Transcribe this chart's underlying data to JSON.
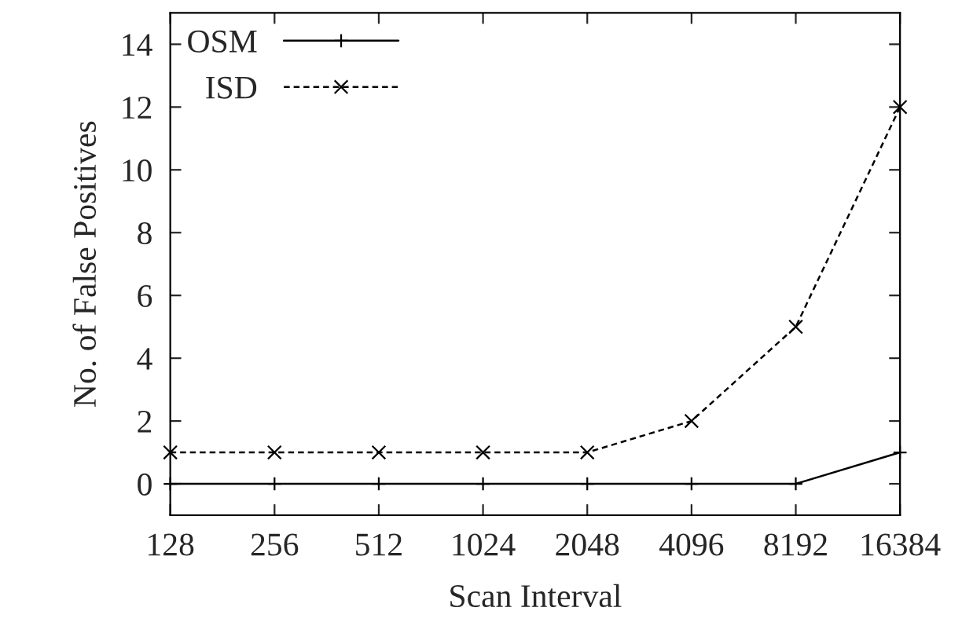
{
  "chart_data": {
    "type": "line",
    "xlabel": "Scan Interval",
    "ylabel": "No. of False Positives",
    "categories": [
      "128",
      "256",
      "512",
      "1024",
      "2048",
      "4096",
      "8192",
      "16384"
    ],
    "series": [
      {
        "name": "OSM",
        "color": "#000000",
        "values": [
          0,
          0,
          0,
          0,
          0,
          0,
          0,
          1
        ],
        "marker": "plus",
        "line_style": "solid"
      },
      {
        "name": "ISD",
        "color": "#000000",
        "values": [
          1,
          1,
          1,
          1,
          1,
          2,
          5,
          12
        ],
        "marker": "cross",
        "line_style": "dashed"
      }
    ],
    "ylim": [
      -1,
      15
    ],
    "yticks": [
      0,
      2,
      4,
      6,
      8,
      10,
      12,
      14
    ],
    "grid": false,
    "legend": "top left"
  }
}
